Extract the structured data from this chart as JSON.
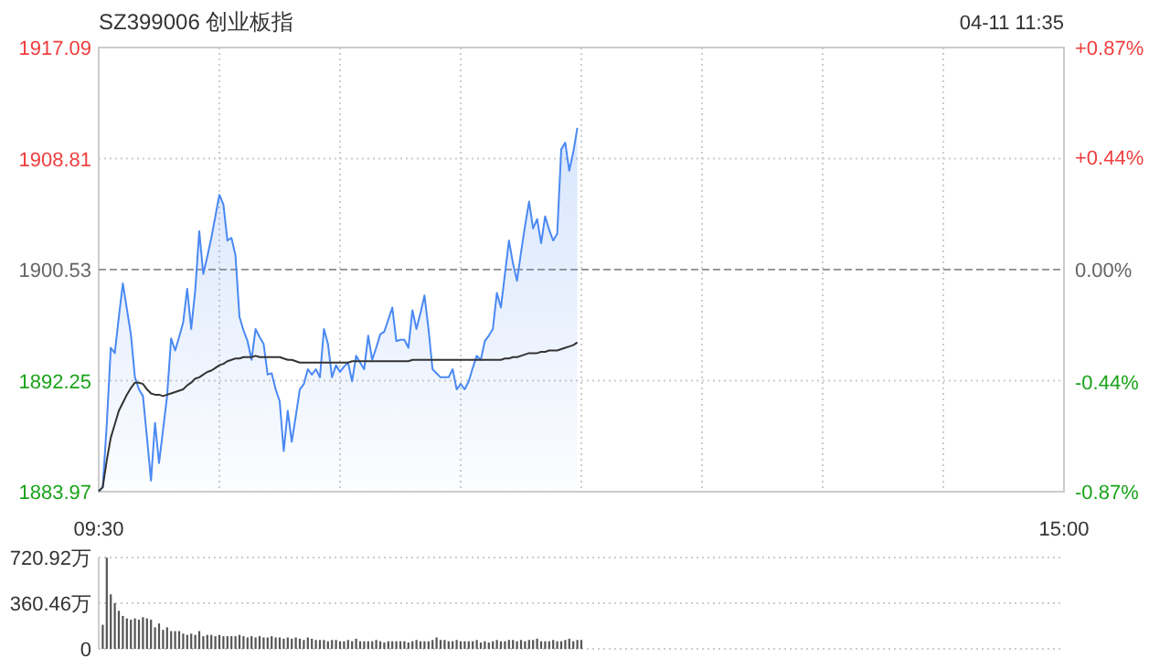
{
  "chart_data": [
    {
      "type": "line",
      "title": "SZ399006 创业板指",
      "annotations": [
        "04-11 11:35"
      ],
      "categories": [
        "09:30",
        null,
        null,
        null,
        null,
        null,
        null,
        null,
        null,
        null,
        null,
        null,
        null,
        null,
        null,
        null,
        null,
        null,
        null,
        null,
        null,
        null,
        null,
        null,
        null,
        null,
        null,
        null,
        null,
        null,
        null,
        null,
        null,
        null,
        null,
        null,
        null,
        null,
        null,
        null,
        null,
        null,
        null,
        null,
        null,
        null,
        null,
        null,
        null,
        null,
        null,
        null,
        null,
        null,
        null,
        null,
        null,
        null,
        null,
        null,
        null,
        null,
        null,
        null,
        null,
        null,
        null,
        null,
        null,
        null,
        null,
        null,
        null,
        null,
        null,
        null,
        null,
        null,
        null,
        null,
        null,
        null,
        null,
        null,
        null,
        null,
        null,
        null,
        null,
        null,
        null,
        null,
        null,
        null,
        null,
        null,
        null,
        null,
        null,
        null,
        null,
        null,
        null,
        null,
        null,
        null,
        null,
        null,
        null,
        null,
        null,
        null,
        null,
        null,
        null,
        null,
        null,
        null,
        null,
        null,
        null,
        null,
        null,
        null,
        null,
        null,
        null,
        null,
        null,
        null,
        null,
        null,
        null,
        null,
        null,
        null,
        null,
        null,
        null,
        null,
        null,
        null,
        null,
        null,
        null,
        null,
        null,
        null,
        null,
        null,
        null,
        null,
        null,
        null,
        null,
        null,
        null,
        null,
        null,
        null,
        null,
        null,
        null,
        null,
        null,
        null,
        null,
        null,
        null,
        null,
        null,
        null,
        null,
        null,
        null,
        null,
        null,
        null,
        null,
        null,
        null,
        null,
        null,
        null,
        null,
        null,
        null,
        null,
        null,
        null,
        null,
        null,
        null,
        null,
        null,
        null,
        null,
        null,
        null,
        null,
        null,
        null,
        null,
        null,
        null,
        null,
        null,
        null,
        null,
        null,
        null,
        null,
        null,
        null,
        null,
        null,
        null,
        null,
        null,
        null,
        null,
        null,
        null,
        null,
        null,
        null,
        null,
        null,
        null,
        null,
        null,
        null,
        null,
        null,
        null,
        null,
        null,
        null,
        null,
        null,
        "15:00"
      ],
      "ylim": [
        1883.97,
        1917.09
      ],
      "yticks": [
        1883.97,
        1892.25,
        1900.53,
        1908.81,
        1917.09
      ],
      "y2lim": [
        -0.87,
        0.87
      ],
      "y2ticks": [
        {
          "value": -0.87,
          "label": "-0.87%"
        },
        {
          "value": -0.44,
          "label": "-0.44%"
        },
        {
          "value": 0,
          "label": "0.00%"
        },
        {
          "value": 0.44,
          "label": "+0.44%"
        },
        {
          "value": 0.87,
          "label": "+0.87%"
        }
      ],
      "ref_lines": [
        {
          "axis": "y",
          "value": 1900.53,
          "line_style": "dashed",
          "color": "#999999"
        }
      ],
      "grid": true,
      "series": [
        {
          "type": "area",
          "color": "#4a89f3",
          "values": [
            1884.0,
            1884.3,
            1889.0,
            1894.7,
            1894.3,
            1897.0,
            1899.5,
            1897.6,
            1895.7,
            1892.5,
            1891.6,
            1891.1,
            1888.0,
            1884.8,
            1889.1,
            1886.1,
            1888.6,
            1891.1,
            1895.4,
            1894.5,
            1895.5,
            1896.6,
            1899.1,
            1896.1,
            1899.0,
            1903.4,
            1900.2,
            1901.5,
            1902.9,
            1904.5,
            1906.1,
            1905.4,
            1902.7,
            1902.9,
            1901.6,
            1897.0,
            1896.0,
            1895.2,
            1893.8,
            1896.1,
            1895.5,
            1895.0,
            1892.7,
            1892.8,
            1891.6,
            1890.7,
            1887.0,
            1890.0,
            1887.7,
            1889.6,
            1891.6,
            1892.0,
            1893.1,
            1892.7,
            1893.1,
            1892.5,
            1896.1,
            1895.0,
            1892.5,
            1893.4,
            1892.9,
            1893.3,
            1893.6,
            1892.2,
            1894.1,
            1893.6,
            1893.1,
            1895.6,
            1893.8,
            1894.7,
            1895.7,
            1895.9,
            1896.8,
            1897.7,
            1895.2,
            1895.3,
            1895.3,
            1894.7,
            1897.5,
            1896.1,
            1897.3,
            1898.6,
            1896.1,
            1893.1,
            1892.8,
            1892.5,
            1892.5,
            1892.5,
            1893.1,
            1891.6,
            1892.0,
            1891.6,
            1892.2,
            1893.2,
            1894.1,
            1893.8,
            1895.2,
            1895.6,
            1896.1,
            1898.8,
            1897.7,
            1900.2,
            1902.7,
            1901.0,
            1899.7,
            1901.8,
            1903.8,
            1905.6,
            1903.6,
            1904.3,
            1902.5,
            1904.5,
            1903.5,
            1902.7,
            1903.2,
            1909.5,
            1910.0,
            1907.9,
            1909.3,
            1911.1,
            null,
            null,
            null,
            null,
            null,
            null,
            null,
            null,
            null,
            null,
            null,
            null,
            null,
            null,
            null,
            null,
            null,
            null,
            null,
            null,
            null,
            null,
            null,
            null,
            null,
            null,
            null,
            null,
            null,
            null,
            null,
            null,
            null,
            null,
            null,
            null,
            null,
            null,
            null,
            null,
            null,
            null,
            null,
            null,
            null,
            null,
            null,
            null,
            null,
            null,
            null,
            null,
            null,
            null,
            null,
            null,
            null,
            null,
            null,
            null,
            null,
            null,
            null,
            null,
            null,
            null,
            null,
            null,
            null,
            null,
            null,
            null,
            null,
            null,
            null,
            null,
            null,
            null,
            null,
            null,
            null,
            null,
            null,
            null,
            null,
            null,
            null,
            null,
            null,
            null,
            null,
            null,
            null,
            null,
            null,
            null,
            null,
            null,
            null,
            null,
            null,
            null,
            null,
            null,
            null,
            null,
            null,
            null,
            null,
            null,
            null,
            null,
            null,
            null,
            null,
            null,
            null,
            null,
            null,
            null,
            null
          ]
        },
        {
          "type": "line",
          "color": "#333333",
          "values": [
            1884.0,
            1884.3,
            1886.3,
            1888.0,
            1889.0,
            1890.0,
            1890.6,
            1891.2,
            1891.7,
            1892.1,
            1892.1,
            1892.0,
            1891.6,
            1891.3,
            1891.2,
            1891.2,
            1891.1,
            1891.2,
            1891.3,
            1891.4,
            1891.5,
            1891.6,
            1891.9,
            1892.1,
            1892.4,
            1892.5,
            1892.7,
            1892.9,
            1893.0,
            1893.2,
            1893.4,
            1893.5,
            1893.7,
            1893.8,
            1893.9,
            1893.9,
            1894.0,
            1894.0,
            1894.0,
            1894.1,
            1894.0,
            1894.0,
            1894.0,
            1894.0,
            1894.0,
            1894.0,
            1893.9,
            1893.8,
            1893.8,
            1893.7,
            1893.6,
            1893.6,
            1893.6,
            1893.6,
            1893.6,
            1893.6,
            1893.6,
            1893.6,
            1893.6,
            1893.6,
            1893.6,
            1893.6,
            1893.6,
            1893.7,
            1893.7,
            1893.7,
            1893.7,
            1893.7,
            1893.7,
            1893.7,
            1893.7,
            1893.7,
            1893.7,
            1893.7,
            1893.7,
            1893.7,
            1893.7,
            1893.7,
            1893.8,
            1893.8,
            1893.8,
            1893.8,
            1893.8,
            1893.8,
            1893.8,
            1893.8,
            1893.8,
            1893.8,
            1893.8,
            1893.8,
            1893.8,
            1893.8,
            1893.8,
            1893.8,
            1893.8,
            1893.8,
            1893.8,
            1893.8,
            1893.8,
            1893.8,
            1893.8,
            1893.9,
            1893.9,
            1894.0,
            1894.0,
            1894.1,
            1894.2,
            1894.3,
            1894.3,
            1894.3,
            1894.4,
            1894.4,
            1894.5,
            1894.5,
            1894.5,
            1894.6,
            1894.7,
            1894.8,
            1894.9,
            1895.1,
            null,
            null,
            null,
            null,
            null,
            null,
            null,
            null,
            null,
            null,
            null,
            null,
            null,
            null,
            null,
            null,
            null,
            null,
            null,
            null,
            null,
            null,
            null,
            null,
            null,
            null,
            null,
            null,
            null,
            null,
            null,
            null,
            null,
            null,
            null,
            null,
            null,
            null,
            null,
            null,
            null,
            null,
            null,
            null,
            null,
            null,
            null,
            null,
            null,
            null,
            null,
            null,
            null,
            null,
            null,
            null,
            null,
            null,
            null,
            null,
            null,
            null,
            null,
            null,
            null,
            null,
            null,
            null,
            null,
            null,
            null,
            null,
            null,
            null,
            null,
            null,
            null,
            null,
            null,
            null,
            null,
            null,
            null,
            null,
            null,
            null,
            null,
            null,
            null,
            null,
            null,
            null,
            null,
            null,
            null,
            null,
            null,
            null,
            null,
            null,
            null,
            null,
            null,
            null,
            null,
            null,
            null,
            null,
            null,
            null,
            null,
            null,
            null,
            null,
            null,
            null,
            null,
            null,
            null,
            null,
            null
          ]
        }
      ]
    },
    {
      "type": "bar",
      "color": "#555555",
      "ylim": [
        0,
        720.92
      ],
      "yticks": [
        0,
        {
          "value": 360.46,
          "label": "360.46万"
        },
        {
          "value": 720.92,
          "label": "720.92万"
        }
      ],
      "grid": "y",
      "tick_labels": "y",
      "categories": [
        null,
        null,
        null,
        null,
        null,
        null,
        null,
        null,
        null,
        null,
        null,
        null,
        null,
        null,
        null,
        null,
        null,
        null,
        null,
        null,
        null,
        null,
        null,
        null,
        null,
        null,
        null,
        null,
        null,
        null,
        null,
        null,
        null,
        null,
        null,
        null,
        null,
        null,
        null,
        null,
        null,
        null,
        null,
        null,
        null,
        null,
        null,
        null,
        null,
        null,
        null,
        null,
        null,
        null,
        null,
        null,
        null,
        null,
        null,
        null,
        null,
        null,
        null,
        null,
        null,
        null,
        null,
        null,
        null,
        null,
        null,
        null,
        null,
        null,
        null,
        null,
        null,
        null,
        null,
        null,
        null,
        null,
        null,
        null,
        null,
        null,
        null,
        null,
        null,
        null,
        null,
        null,
        null,
        null,
        null,
        null,
        null,
        null,
        null,
        null,
        null,
        null,
        null,
        null,
        null,
        null,
        null,
        null,
        null,
        null,
        null,
        null,
        null,
        null,
        null,
        null,
        null,
        null,
        null,
        null,
        null,
        null,
        null,
        null,
        null,
        null,
        null,
        null,
        null,
        null,
        null,
        null,
        null,
        null,
        null,
        null,
        null,
        null,
        null,
        null,
        null,
        null,
        null,
        null,
        null,
        null,
        null,
        null,
        null,
        null,
        null,
        null,
        null,
        null,
        null,
        null,
        null,
        null,
        null,
        null,
        null,
        null,
        null,
        null,
        null,
        null,
        null,
        null,
        null,
        null,
        null,
        null,
        null,
        null,
        null,
        null,
        null,
        null,
        null,
        null,
        null,
        null,
        null,
        null,
        null,
        null,
        null,
        null,
        null,
        null,
        null,
        null,
        null,
        null,
        null,
        null,
        null,
        null,
        null,
        null,
        null,
        null,
        null,
        null,
        null,
        null,
        null,
        null,
        null,
        null,
        null,
        null,
        null,
        null,
        null,
        null,
        null,
        null,
        null,
        null,
        null,
        null,
        null,
        null,
        null,
        null,
        null,
        null,
        null,
        null,
        null,
        null,
        null,
        null,
        null,
        null,
        null,
        null,
        null,
        null,
        null
      ],
      "values": [
        null,
        190,
        720,
        430,
        360,
        300,
        260,
        240,
        230,
        240,
        230,
        250,
        240,
        230,
        170,
        200,
        150,
        170,
        140,
        140,
        140,
        120,
        110,
        120,
        110,
        140,
        100,
        110,
        110,
        100,
        110,
        100,
        100,
        100,
        100,
        110,
        100,
        90,
        100,
        90,
        100,
        90,
        90,
        100,
        90,
        90,
        80,
        90,
        80,
        90,
        80,
        70,
        90,
        80,
        70,
        70,
        70,
        60,
        70,
        70,
        60,
        60,
        70,
        60,
        80,
        60,
        60,
        60,
        60,
        70,
        60,
        50,
        60,
        60,
        60,
        60,
        60,
        50,
        60,
        70,
        60,
        60,
        60,
        70,
        90,
        70,
        70,
        60,
        60,
        70,
        60,
        60,
        60,
        60,
        70,
        50,
        60,
        50,
        60,
        70,
        60,
        60,
        70,
        70,
        60,
        70,
        60,
        70,
        70,
        80,
        60,
        60,
        60,
        70,
        60,
        60,
        70,
        80,
        60,
        70,
        70,
        null,
        null,
        null,
        null,
        null,
        null,
        null,
        null,
        null,
        null,
        null,
        null,
        null,
        null,
        null,
        null,
        null,
        null,
        null,
        null,
        null,
        null,
        null,
        null,
        null,
        null,
        null,
        null,
        null,
        null,
        null,
        null,
        null,
        null,
        null,
        null,
        null,
        null,
        null,
        null,
        null,
        null,
        null,
        null,
        null,
        null,
        null,
        null,
        null,
        null,
        null,
        null,
        null,
        null,
        null,
        null,
        null,
        null,
        null,
        null,
        null,
        null,
        null,
        null,
        null,
        null,
        null,
        null,
        null,
        null,
        null,
        null,
        null,
        null,
        null,
        null,
        null,
        null,
        null,
        null,
        null,
        null,
        null,
        null,
        null,
        null,
        null,
        null,
        null,
        null,
        null,
        null,
        null,
        null,
        null,
        null,
        null,
        null,
        null,
        null,
        null,
        null,
        null,
        null,
        null,
        null,
        null,
        null,
        null,
        null,
        null,
        null,
        null,
        null,
        null,
        null,
        null,
        null,
        null,
        null
      ]
    }
  ]
}
